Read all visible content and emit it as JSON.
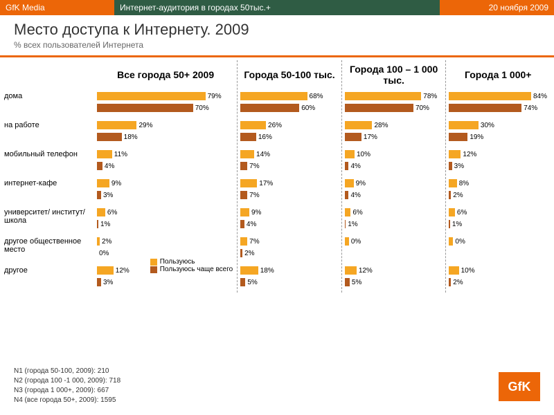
{
  "header": {
    "brand": "GfK Media",
    "center": "Интернет-аудитория в городах 50тыс.+",
    "date": "20 ноября 2009"
  },
  "title": "Место доступа к Интернету. 2009",
  "subtitle": "% всех пользователей Интернета",
  "colors": {
    "accent": "#ec6608",
    "header_mid": "#2f5c44",
    "bar_use": "#f5a623",
    "bar_most": "#b35a1e"
  },
  "legend": {
    "use": "Пользуюсь",
    "most": "Пользуюсь чаще всего"
  },
  "row_labels": [
    "дома",
    "на работе",
    "мобильный телефон",
    "интернет-кафе",
    "университет/ институт/ школа",
    "другое общественное место",
    "другое"
  ],
  "panels": [
    {
      "title": "Все города 50+ 2009",
      "max": 100,
      "rows": [
        {
          "use": 79,
          "most": 70
        },
        {
          "use": 29,
          "most": 18
        },
        {
          "use": 11,
          "most": 4
        },
        {
          "use": 9,
          "most": 3
        },
        {
          "use": 6,
          "most": 1
        },
        {
          "use": 2,
          "most": 0
        },
        {
          "use": 12,
          "most": 3
        }
      ]
    },
    {
      "title": "Города 50-100 тыс.",
      "max": 100,
      "rows": [
        {
          "use": 68,
          "most": 60
        },
        {
          "use": 26,
          "most": 16
        },
        {
          "use": 14,
          "most": 7
        },
        {
          "use": 17,
          "most": 7
        },
        {
          "use": 9,
          "most": 4
        },
        {
          "use": 7,
          "most": 2
        },
        {
          "use": 18,
          "most": 5
        }
      ]
    },
    {
      "title": "Города 100 – 1 000 тыс.",
      "max": 100,
      "rows": [
        {
          "use": 78,
          "most": 70
        },
        {
          "use": 28,
          "most": 17
        },
        {
          "use": 10,
          "most": 4
        },
        {
          "use": 9,
          "most": 4
        },
        {
          "use": 6,
          "most": 1
        },
        {
          "use": 0,
          "most": 0,
          "single": true
        },
        {
          "use": 12,
          "most": 5
        }
      ]
    },
    {
      "title": "Города 1 000+",
      "max": 100,
      "rows": [
        {
          "use": 84,
          "most": 74
        },
        {
          "use": 30,
          "most": 19
        },
        {
          "use": 12,
          "most": 3
        },
        {
          "use": 8,
          "most": 2
        },
        {
          "use": 6,
          "most": 1
        },
        {
          "use": 0,
          "most": 0,
          "single": true
        },
        {
          "use": 10,
          "most": 2
        }
      ]
    }
  ],
  "footnotes": [
    "N1 (города 50-100, 2009): 210",
    "N2 (города 100 -1 000, 2009): 718",
    "N3 (города 1 000+, 2009): 667",
    "N4 (все города 50+, 2009): 1595"
  ],
  "logo": "GfK"
}
